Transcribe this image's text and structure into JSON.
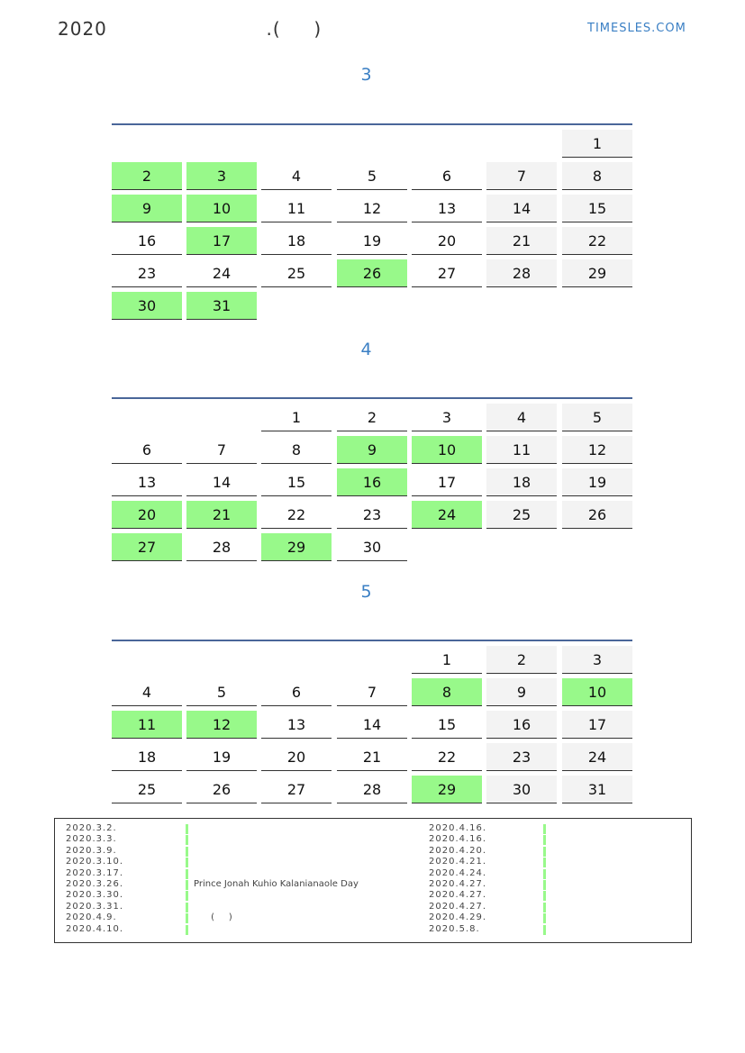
{
  "header": {
    "title": "2020                        .(     )",
    "brand": "TIMESLES.COM"
  },
  "colors": {
    "accent": "#3a7fc4",
    "holiday": "#98f98a",
    "weekend": "#f3f3f3",
    "rule": "#4a6699"
  },
  "months": [
    {
      "title": "3",
      "first_weekday_index": 6,
      "days": 31,
      "holidays": [
        2,
        3,
        9,
        10,
        17,
        26,
        30,
        31
      ]
    },
    {
      "title": "4",
      "first_weekday_index": 2,
      "days": 30,
      "holidays": [
        9,
        10,
        16,
        20,
        21,
        24,
        27,
        29
      ]
    },
    {
      "title": "5",
      "first_weekday_index": 4,
      "days": 31,
      "holidays": [
        8,
        10,
        11,
        12,
        29
      ]
    }
  ],
  "legend": {
    "left": [
      {
        "date": "2020.3.2.",
        "name": ""
      },
      {
        "date": "2020.3.3.",
        "name": ""
      },
      {
        "date": "2020.3.9.",
        "name": ""
      },
      {
        "date": "2020.3.10.",
        "name": ""
      },
      {
        "date": "2020.3.17.",
        "name": ""
      },
      {
        "date": "2020.3.26.",
        "name": "Prince Jonah Kuhio Kalanianaole Day"
      },
      {
        "date": "2020.3.30.",
        "name": ""
      },
      {
        "date": "2020.3.31.",
        "name": ""
      },
      {
        "date": "2020.4.9.",
        "name": "      (     )"
      },
      {
        "date": "2020.4.10.",
        "name": ""
      }
    ],
    "right": [
      {
        "date": "2020.4.16.",
        "name": ""
      },
      {
        "date": "2020.4.16.",
        "name": ""
      },
      {
        "date": "2020.4.20.",
        "name": ""
      },
      {
        "date": "2020.4.21.",
        "name": ""
      },
      {
        "date": "2020.4.24.",
        "name": ""
      },
      {
        "date": "2020.4.27.",
        "name": ""
      },
      {
        "date": "2020.4.27.",
        "name": ""
      },
      {
        "date": "2020.4.27.",
        "name": ""
      },
      {
        "date": "2020.4.29.",
        "name": ""
      },
      {
        "date": "2020.5.8.",
        "name": ""
      }
    ]
  }
}
